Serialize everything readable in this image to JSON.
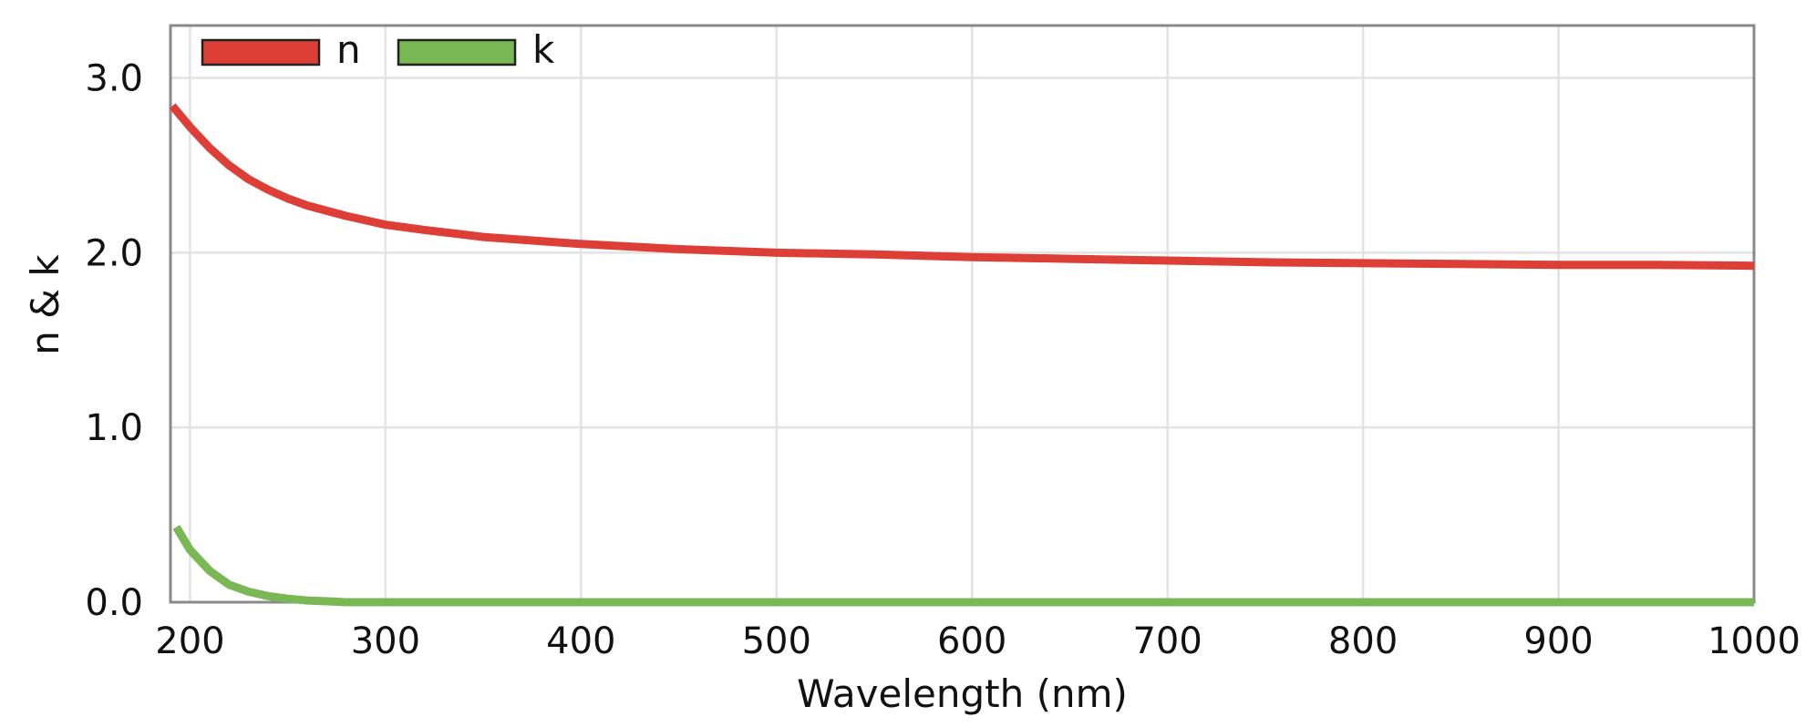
{
  "chart_data": {
    "type": "line",
    "title": "",
    "xlabel": "Wavelength (nm)",
    "ylabel": "n & k",
    "xlim": [
      190,
      1000
    ],
    "ylim": [
      0,
      3.3
    ],
    "x_ticks": [
      200,
      300,
      400,
      500,
      600,
      700,
      800,
      900,
      1000
    ],
    "x_tick_labels": [
      "200",
      "300",
      "400",
      "500",
      "600",
      "700",
      "800",
      "900",
      "1000"
    ],
    "y_ticks": [
      0,
      1,
      2,
      3
    ],
    "y_tick_labels": [
      "0.0",
      "1.0",
      "2.0",
      "3.0"
    ],
    "grid": true,
    "legend_position": "top-left",
    "series": [
      {
        "name": "n",
        "color": "#dd3e36",
        "x": [
          191,
          200,
          210,
          220,
          230,
          240,
          250,
          260,
          280,
          300,
          320,
          350,
          400,
          450,
          500,
          550,
          600,
          650,
          700,
          750,
          800,
          850,
          900,
          950,
          1000
        ],
        "y": [
          2.84,
          2.72,
          2.6,
          2.5,
          2.42,
          2.36,
          2.31,
          2.27,
          2.21,
          2.16,
          2.13,
          2.09,
          2.05,
          2.02,
          2.0,
          1.99,
          1.975,
          1.965,
          1.955,
          1.945,
          1.94,
          1.935,
          1.93,
          1.93,
          1.925
        ]
      },
      {
        "name": "k",
        "color": "#7ab856",
        "x": [
          193,
          200,
          210,
          220,
          230,
          240,
          250,
          260,
          270,
          280,
          300,
          400,
          500,
          600,
          700,
          800,
          900,
          1000
        ],
        "y": [
          0.43,
          0.3,
          0.18,
          0.1,
          0.06,
          0.035,
          0.02,
          0.01,
          0.005,
          0.0,
          0.0,
          0.0,
          0.0,
          0.0,
          0.0,
          0.0,
          0.0,
          0.0
        ]
      }
    ]
  }
}
